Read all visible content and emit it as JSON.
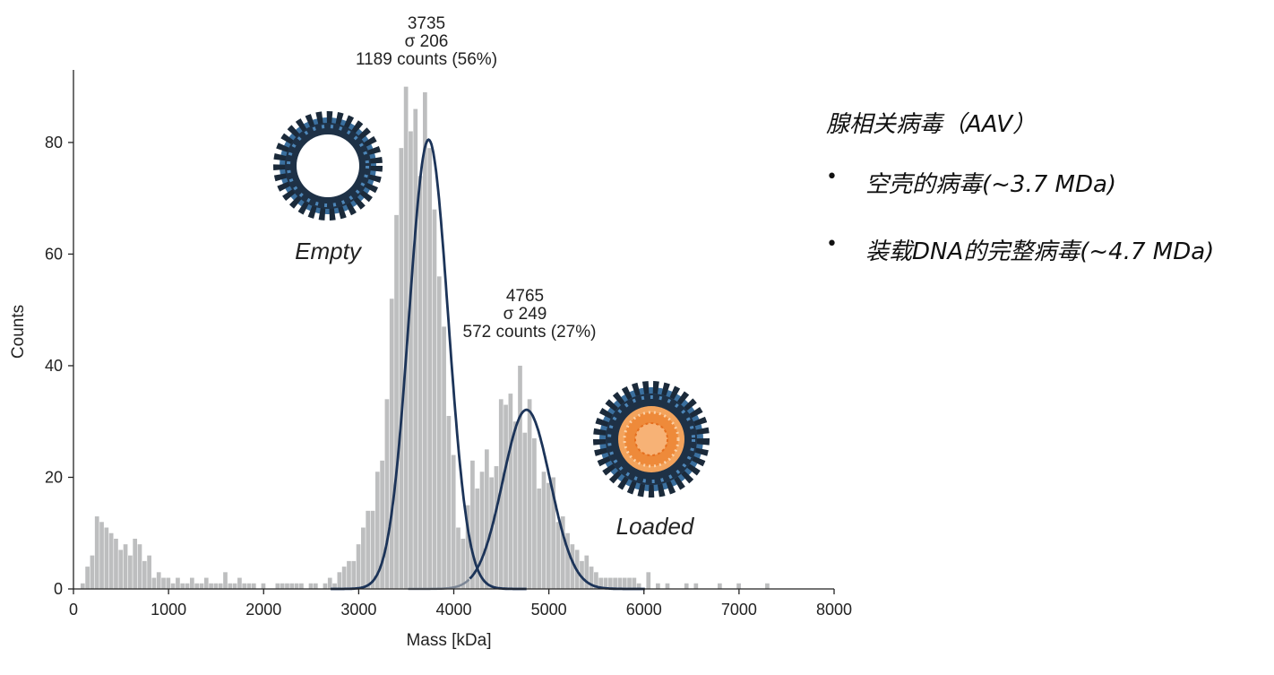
{
  "chart_data": {
    "type": "bar",
    "xlabel": "Mass [kDa]",
    "ylabel": "Counts",
    "xlim": [
      0,
      8000
    ],
    "ylim": [
      0,
      93
    ],
    "xticks": [
      0,
      1000,
      2000,
      3000,
      4000,
      5000,
      6000,
      7000,
      8000
    ],
    "yticks": [
      0,
      20,
      40,
      60,
      80
    ],
    "bin_width": 50,
    "histogram": {
      "x": [
        100,
        150,
        200,
        250,
        300,
        350,
        400,
        450,
        500,
        550,
        600,
        650,
        700,
        750,
        800,
        850,
        900,
        950,
        1000,
        1050,
        1100,
        1150,
        1200,
        1250,
        1300,
        1350,
        1400,
        1450,
        1500,
        1550,
        1600,
        1650,
        1700,
        1750,
        1800,
        1850,
        1900,
        2000,
        2150,
        2200,
        2250,
        2300,
        2350,
        2400,
        2500,
        2550,
        2650,
        2700,
        2750,
        2800,
        2850,
        2900,
        2950,
        3000,
        3050,
        3100,
        3150,
        3200,
        3250,
        3300,
        3350,
        3400,
        3450,
        3500,
        3550,
        3600,
        3650,
        3700,
        3750,
        3800,
        3850,
        3900,
        3950,
        4000,
        4050,
        4100,
        4150,
        4200,
        4250,
        4300,
        4350,
        4400,
        4450,
        4500,
        4550,
        4600,
        4650,
        4700,
        4750,
        4800,
        4850,
        4900,
        4950,
        5000,
        5050,
        5100,
        5150,
        5200,
        5250,
        5300,
        5350,
        5400,
        5450,
        5500,
        5550,
        5600,
        5650,
        5700,
        5750,
        5800,
        5850,
        5900,
        5950,
        6050,
        6150,
        6250,
        6450,
        6550,
        6800,
        7000,
        7300
      ],
      "y": [
        1,
        4,
        6,
        13,
        12,
        11,
        10,
        9,
        7,
        8,
        6,
        9,
        8,
        5,
        6,
        2,
        3,
        2,
        2,
        1,
        2,
        1,
        1,
        2,
        1,
        1,
        2,
        1,
        1,
        1,
        3,
        1,
        1,
        2,
        1,
        1,
        1,
        1,
        1,
        1,
        1,
        1,
        1,
        1,
        1,
        1,
        1,
        2,
        1,
        3,
        4,
        5,
        5,
        8,
        11,
        14,
        14,
        21,
        23,
        34,
        52,
        67,
        79,
        90,
        82,
        86,
        74,
        89,
        79,
        68,
        56,
        47,
        31,
        24,
        11,
        9,
        15,
        23,
        18,
        21,
        25,
        20,
        22,
        34,
        33,
        35,
        30,
        40,
        28,
        34,
        27,
        18,
        21,
        19,
        20,
        12,
        13,
        10,
        8,
        7,
        5,
        6,
        4,
        3,
        2,
        2,
        2,
        2,
        2,
        2,
        2,
        2,
        1,
        3,
        1,
        1,
        1,
        1,
        1,
        1,
        1
      ]
    },
    "series": [
      {
        "values_kind": "gaussian fit",
        "mean": 3735,
        "sigma": 206,
        "peak": 80.5,
        "color": "#1c3459"
      },
      {
        "values_kind": "gaussian fit",
        "mean": 4765,
        "sigma": 249,
        "peak": 32.1,
        "color": "#1c3459"
      }
    ],
    "annotations": [
      {
        "lines": [
          "3735",
          "σ 206",
          "1189 counts (56%)"
        ]
      },
      {
        "lines": [
          "4765",
          "σ 249",
          "572 counts (27%)"
        ]
      },
      {
        "label": "Empty"
      },
      {
        "label": "Loaded"
      }
    ],
    "colors": {
      "bars": "#bdbebf",
      "fit": "#1c3459",
      "fit_tail": "#7c8695",
      "virus_shell": "#2a3d52",
      "virus_core": "#ee8a3a"
    }
  },
  "notes": {
    "heading": "腺相关病毒（AAV）",
    "items": [
      "空壳的病毒(~3.7 MDa)",
      "装载DNA的完整病毒(~4.7 MDa)"
    ]
  }
}
